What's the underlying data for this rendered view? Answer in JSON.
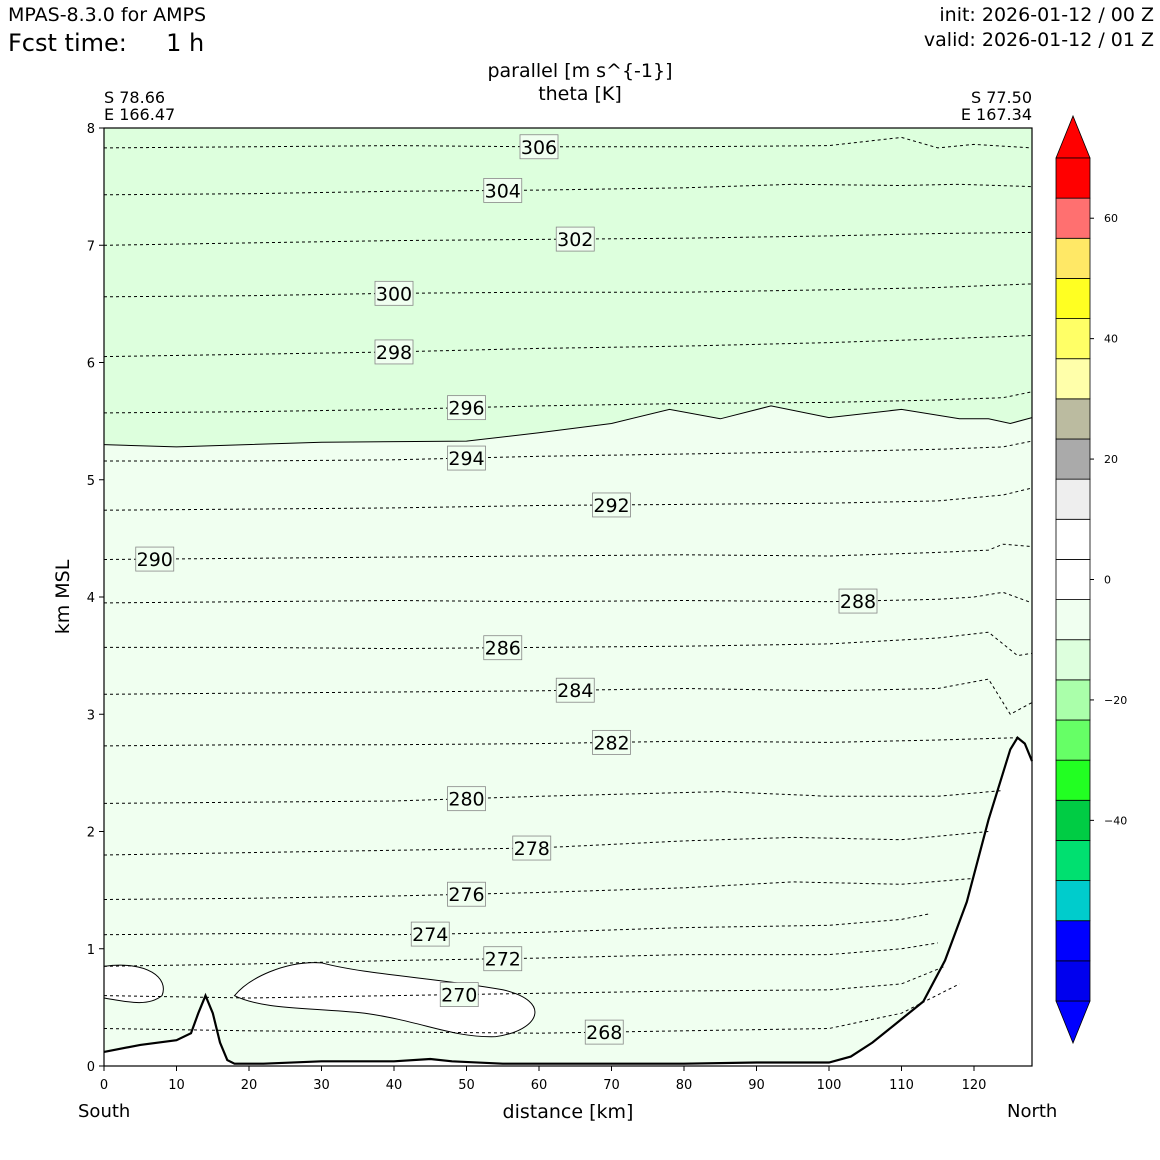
{
  "header": {
    "model": "MPAS-8.3.0 for AMPS",
    "fcst_label": "Fcst time:",
    "fcst_value": "1 h",
    "init": "init: 2026-01-12 / 00 Z",
    "valid": "valid: 2026-01-12 / 01 Z"
  },
  "endpoints": {
    "left_lat": "S 78.66",
    "left_lon": "E 166.47",
    "right_lat": "S 77.50",
    "right_lon": "E 167.34",
    "left_dir": "South",
    "right_dir": "North"
  },
  "chart_data": {
    "type": "cross-section",
    "title": "parallel [m s^{-1}]",
    "subtitle": "theta [K]",
    "xlabel": "distance [km]",
    "ylabel": "km MSL",
    "xlim": [
      0,
      128
    ],
    "ylim": [
      0,
      8
    ],
    "xticks": [
      0,
      10,
      20,
      30,
      40,
      50,
      60,
      70,
      80,
      90,
      100,
      110,
      120
    ],
    "yticks": [
      0,
      1,
      2,
      3,
      4,
      5,
      6,
      7,
      8
    ],
    "grid": false,
    "theta_contours": [
      {
        "value": 268,
        "label": "268",
        "label_x": 69,
        "heights": [
          [
            0,
            0.32
          ],
          [
            20,
            0.3
          ],
          [
            40,
            0.29
          ],
          [
            60,
            0.28
          ],
          [
            80,
            0.3
          ],
          [
            100,
            0.32
          ],
          [
            110,
            0.45
          ],
          [
            118,
            0.7
          ]
        ]
      },
      {
        "value": 270,
        "label": "270",
        "label_x": 49,
        "heights": [
          [
            0,
            0.6
          ],
          [
            20,
            0.58
          ],
          [
            40,
            0.6
          ],
          [
            60,
            0.62
          ],
          [
            80,
            0.64
          ],
          [
            100,
            0.65
          ],
          [
            110,
            0.7
          ],
          [
            116,
            0.85
          ]
        ]
      },
      {
        "value": 272,
        "label": "272",
        "label_x": 55,
        "heights": [
          [
            0,
            0.85
          ],
          [
            20,
            0.87
          ],
          [
            40,
            0.9
          ],
          [
            60,
            0.92
          ],
          [
            80,
            0.95
          ],
          [
            100,
            0.95
          ],
          [
            110,
            1.0
          ],
          [
            115,
            1.05
          ]
        ]
      },
      {
        "value": 274,
        "label": "274",
        "label_x": 45,
        "heights": [
          [
            0,
            1.12
          ],
          [
            20,
            1.13
          ],
          [
            40,
            1.12
          ],
          [
            60,
            1.14
          ],
          [
            80,
            1.18
          ],
          [
            100,
            1.2
          ],
          [
            110,
            1.25
          ],
          [
            114,
            1.3
          ]
        ]
      },
      {
        "value": 276,
        "label": "276",
        "label_x": 50,
        "heights": [
          [
            0,
            1.42
          ],
          [
            20,
            1.43
          ],
          [
            40,
            1.45
          ],
          [
            60,
            1.48
          ],
          [
            80,
            1.52
          ],
          [
            95,
            1.57
          ],
          [
            110,
            1.55
          ],
          [
            120,
            1.6
          ]
        ]
      },
      {
        "value": 278,
        "label": "278",
        "label_x": 59,
        "heights": [
          [
            0,
            1.8
          ],
          [
            20,
            1.82
          ],
          [
            40,
            1.84
          ],
          [
            60,
            1.86
          ],
          [
            80,
            1.92
          ],
          [
            95,
            1.95
          ],
          [
            110,
            1.93
          ],
          [
            122,
            2.0
          ]
        ]
      },
      {
        "value": 280,
        "label": "280",
        "label_x": 50,
        "heights": [
          [
            0,
            2.24
          ],
          [
            20,
            2.25
          ],
          [
            40,
            2.26
          ],
          [
            60,
            2.3
          ],
          [
            85,
            2.34
          ],
          [
            100,
            2.3
          ],
          [
            115,
            2.3
          ],
          [
            124,
            2.35
          ]
        ]
      },
      {
        "value": 282,
        "label": "282",
        "label_x": 70,
        "heights": [
          [
            0,
            2.73
          ],
          [
            20,
            2.74
          ],
          [
            40,
            2.74
          ],
          [
            60,
            2.75
          ],
          [
            80,
            2.77
          ],
          [
            100,
            2.76
          ],
          [
            115,
            2.78
          ],
          [
            126,
            2.8
          ]
        ]
      },
      {
        "value": 284,
        "label": "284",
        "label_x": 65,
        "heights": [
          [
            0,
            3.17
          ],
          [
            20,
            3.18
          ],
          [
            40,
            3.19
          ],
          [
            60,
            3.2
          ],
          [
            80,
            3.22
          ],
          [
            100,
            3.2
          ],
          [
            115,
            3.22
          ],
          [
            122,
            3.3
          ],
          [
            125,
            3.0
          ],
          [
            128,
            3.1
          ]
        ]
      },
      {
        "value": 286,
        "label": "286",
        "label_x": 55,
        "heights": [
          [
            0,
            3.57
          ],
          [
            20,
            3.57
          ],
          [
            40,
            3.56
          ],
          [
            60,
            3.57
          ],
          [
            80,
            3.58
          ],
          [
            100,
            3.6
          ],
          [
            115,
            3.65
          ],
          [
            122,
            3.7
          ],
          [
            126,
            3.5
          ],
          [
            128,
            3.52
          ]
        ]
      },
      {
        "value": 288,
        "label": "288",
        "label_x": 104,
        "heights": [
          [
            0,
            3.95
          ],
          [
            20,
            3.96
          ],
          [
            40,
            3.97
          ],
          [
            60,
            3.96
          ],
          [
            80,
            3.97
          ],
          [
            100,
            3.96
          ],
          [
            115,
            3.98
          ],
          [
            120,
            4.0
          ],
          [
            124,
            4.04
          ],
          [
            128,
            3.95
          ]
        ]
      },
      {
        "value": 290,
        "label": "290",
        "label_x": 7,
        "heights": [
          [
            0,
            4.32
          ],
          [
            20,
            4.33
          ],
          [
            40,
            4.34
          ],
          [
            60,
            4.35
          ],
          [
            80,
            4.36
          ],
          [
            100,
            4.35
          ],
          [
            115,
            4.38
          ],
          [
            122,
            4.4
          ],
          [
            124,
            4.45
          ],
          [
            128,
            4.43
          ]
        ]
      },
      {
        "value": 292,
        "label": "292",
        "label_x": 70,
        "heights": [
          [
            0,
            4.74
          ],
          [
            20,
            4.75
          ],
          [
            40,
            4.76
          ],
          [
            60,
            4.78
          ],
          [
            80,
            4.79
          ],
          [
            100,
            4.8
          ],
          [
            115,
            4.82
          ],
          [
            124,
            4.87
          ],
          [
            128,
            4.93
          ]
        ]
      },
      {
        "value": 294,
        "label": "294",
        "label_x": 50,
        "heights": [
          [
            0,
            5.16
          ],
          [
            20,
            5.16
          ],
          [
            40,
            5.17
          ],
          [
            60,
            5.2
          ],
          [
            80,
            5.22
          ],
          [
            100,
            5.24
          ],
          [
            115,
            5.26
          ],
          [
            124,
            5.28
          ],
          [
            128,
            5.33
          ]
        ]
      },
      {
        "value": 296,
        "label": "296",
        "label_x": 50,
        "heights": [
          [
            0,
            5.57
          ],
          [
            20,
            5.58
          ],
          [
            40,
            5.6
          ],
          [
            60,
            5.63
          ],
          [
            80,
            5.65
          ],
          [
            100,
            5.66
          ],
          [
            115,
            5.68
          ],
          [
            124,
            5.7
          ],
          [
            128,
            5.75
          ]
        ]
      },
      {
        "value": 298,
        "label": "298",
        "label_x": 40,
        "heights": [
          [
            0,
            6.05
          ],
          [
            20,
            6.07
          ],
          [
            40,
            6.09
          ],
          [
            60,
            6.12
          ],
          [
            80,
            6.14
          ],
          [
            100,
            6.17
          ],
          [
            115,
            6.2
          ],
          [
            128,
            6.23
          ]
        ]
      },
      {
        "value": 300,
        "label": "300",
        "label_x": 40,
        "heights": [
          [
            0,
            6.56
          ],
          [
            20,
            6.57
          ],
          [
            40,
            6.59
          ],
          [
            60,
            6.6
          ],
          [
            80,
            6.6
          ],
          [
            100,
            6.62
          ],
          [
            115,
            6.64
          ],
          [
            128,
            6.67
          ]
        ]
      },
      {
        "value": 302,
        "label": "302",
        "label_x": 65,
        "heights": [
          [
            0,
            7.0
          ],
          [
            20,
            7.02
          ],
          [
            40,
            7.04
          ],
          [
            60,
            7.05
          ],
          [
            80,
            7.06
          ],
          [
            100,
            7.08
          ],
          [
            115,
            7.1
          ],
          [
            128,
            7.11
          ]
        ]
      },
      {
        "value": 304,
        "label": "304",
        "label_x": 55,
        "heights": [
          [
            0,
            7.43
          ],
          [
            20,
            7.44
          ],
          [
            40,
            7.46
          ],
          [
            60,
            7.47
          ],
          [
            80,
            7.49
          ],
          [
            95,
            7.52
          ],
          [
            110,
            7.51
          ],
          [
            118,
            7.52
          ],
          [
            128,
            7.5
          ]
        ]
      },
      {
        "value": 306,
        "label": "306",
        "label_x": 60,
        "heights": [
          [
            0,
            7.83
          ],
          [
            20,
            7.84
          ],
          [
            40,
            7.85
          ],
          [
            60,
            7.84
          ],
          [
            80,
            7.84
          ],
          [
            100,
            7.85
          ],
          [
            110,
            7.92
          ],
          [
            115,
            7.83
          ],
          [
            120,
            7.86
          ],
          [
            128,
            7.83
          ]
        ]
      }
    ],
    "wind_boundary": [
      [
        0,
        5.3
      ],
      [
        10,
        5.28
      ],
      [
        30,
        5.32
      ],
      [
        50,
        5.33
      ],
      [
        60,
        5.4
      ],
      [
        70,
        5.48
      ],
      [
        78,
        5.6
      ],
      [
        85,
        5.52
      ],
      [
        92,
        5.63
      ],
      [
        100,
        5.53
      ],
      [
        110,
        5.6
      ],
      [
        118,
        5.52
      ],
      [
        122,
        5.52
      ],
      [
        125,
        5.48
      ],
      [
        128,
        5.53
      ]
    ],
    "terrain": [
      [
        0,
        0.12
      ],
      [
        5,
        0.18
      ],
      [
        10,
        0.22
      ],
      [
        12,
        0.28
      ],
      [
        13,
        0.45
      ],
      [
        14,
        0.6
      ],
      [
        15,
        0.45
      ],
      [
        16,
        0.2
      ],
      [
        17,
        0.05
      ],
      [
        18,
        0.02
      ],
      [
        22,
        0.02
      ],
      [
        30,
        0.04
      ],
      [
        40,
        0.04
      ],
      [
        45,
        0.06
      ],
      [
        48,
        0.04
      ],
      [
        55,
        0.02
      ],
      [
        80,
        0.02
      ],
      [
        90,
        0.03
      ],
      [
        100,
        0.03
      ],
      [
        103,
        0.08
      ],
      [
        106,
        0.2
      ],
      [
        109,
        0.35
      ],
      [
        113,
        0.55
      ],
      [
        116,
        0.9
      ],
      [
        119,
        1.4
      ],
      [
        122,
        2.1
      ],
      [
        125,
        2.7
      ],
      [
        126,
        2.8
      ],
      [
        127,
        2.75
      ],
      [
        128,
        2.6
      ]
    ],
    "colorbar": {
      "ticks": [
        60,
        40,
        20,
        0,
        -20,
        -40
      ],
      "colors": [
        "#0000ff",
        "#0000ee",
        "#0000ff",
        "#00cccc",
        "#00e070",
        "#00cc44",
        "#22ff22",
        "#66ff66",
        "#aaffaa",
        "#ddffdd",
        "#f0fff0",
        "#ffffff",
        "#ffffff",
        "#eeeeee",
        "#aaaaaa",
        "#bbbba0",
        "#ffffaa",
        "#ffff66",
        "#ffff22",
        "#ffe866",
        "#ff7070",
        "#ff0000",
        "#ff0000"
      ],
      "band_colors": {
        "upper": "#ddffdd",
        "lower": "#f0fff0"
      }
    }
  }
}
